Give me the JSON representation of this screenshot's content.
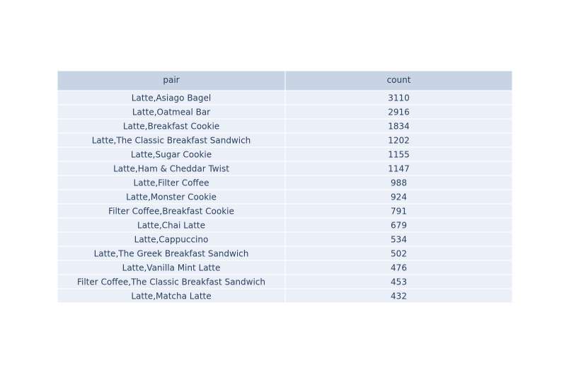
{
  "chart_data": {
    "type": "table",
    "columns": [
      "pair",
      "count"
    ],
    "rows": [
      [
        "Latte,Asiago Bagel",
        "3110"
      ],
      [
        "Latte,Oatmeal Bar",
        "2916"
      ],
      [
        "Latte,Breakfast Cookie",
        "1834"
      ],
      [
        "Latte,The Classic Breakfast Sandwich",
        "1202"
      ],
      [
        "Latte,Sugar Cookie",
        "1155"
      ],
      [
        "Latte,Ham & Cheddar Twist",
        "1147"
      ],
      [
        "Latte,Filter Coffee",
        "988"
      ],
      [
        "Latte,Monster Cookie",
        "924"
      ],
      [
        "Filter Coffee,Breakfast Cookie",
        "791"
      ],
      [
        "Latte,Chai Latte",
        "679"
      ],
      [
        "Latte,Cappuccino",
        "534"
      ],
      [
        "Latte,The Greek Breakfast Sandwich",
        "502"
      ],
      [
        "Latte,Vanilla Mint Latte",
        "476"
      ],
      [
        "Filter Coffee,The Classic Breakfast Sandwich",
        "453"
      ],
      [
        "Latte,Matcha Latte",
        "432"
      ]
    ],
    "colors": {
      "header_fill": "#c8d4e3",
      "cell_fill": "#ebf0f8",
      "line": "#ffffff",
      "text": "#2a3f5f"
    }
  }
}
